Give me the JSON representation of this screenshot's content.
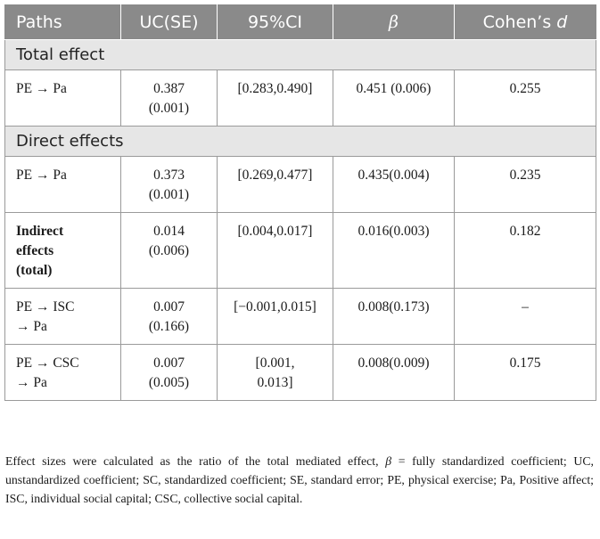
{
  "header": {
    "paths": "Paths",
    "uc_se": "UC(SE)",
    "ci": "95%CI",
    "beta": "β",
    "cohen_prefix": "Cohen’s ",
    "cohen_d": "d"
  },
  "sections": {
    "total": "Total effect",
    "direct": "Direct effects"
  },
  "rows": [
    {
      "path1": "PE →  Pa",
      "path2": "",
      "uc1": "0.387",
      "uc2": "(0.001)",
      "ci1": "[0.283,0.490]",
      "ci2": "",
      "beta": "0.451 (0.006)",
      "cohen": "0.255"
    },
    {
      "path1": "PE →  Pa",
      "path2": "",
      "uc1": "0.373",
      "uc2": "(0.001)",
      "ci1": "[0.269,0.477]",
      "ci2": "",
      "beta": "0.435(0.004)",
      "cohen": "0.235"
    },
    {
      "path1": "Indirect",
      "path2": "effects",
      "path3": "(total)",
      "uc1": "0.014",
      "uc2": "(0.006)",
      "ci1": "[0.004,0.017]",
      "ci2": "",
      "beta": "0.016(0.003)",
      "cohen": "0.182"
    },
    {
      "path1": "PE →  ISC",
      "path2": "→  Pa",
      "uc1": "0.007",
      "uc2": "(0.166)",
      "ci1": "[−0.001,0.015]",
      "ci2": "",
      "beta": "0.008(0.173)",
      "cohen": "–"
    },
    {
      "path1": "PE →  CSC",
      "path2": "→  Pa",
      "uc1": "0.007",
      "uc2": "(0.005)",
      "ci1": "[0.001,",
      "ci2": "0.013]",
      "beta": "0.008(0.009)",
      "cohen": "0.175"
    }
  ],
  "note": {
    "part1": "Effect sizes were calculated as the ratio of the total mediated effect, ",
    "beta_sym": "β",
    "part2": " = fully standardized coefficient; UC, unstandardized coefficient; SC, standardized coefficient; SE, standard error; PE, physical exercise; Pa, Positive affect; ISC, individual social capital; CSC, collective social capital."
  }
}
